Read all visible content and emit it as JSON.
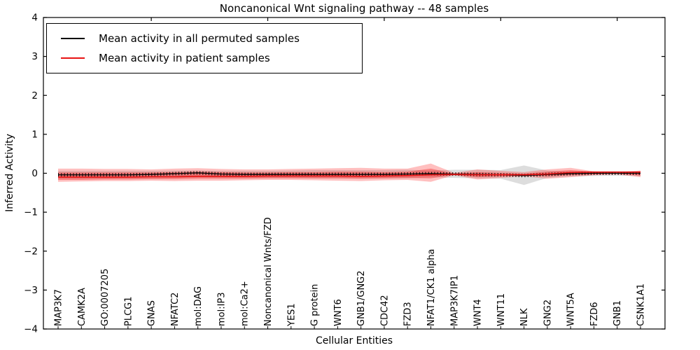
{
  "chart_data": {
    "type": "line",
    "title": "Noncanonical Wnt signaling pathway -- 48 samples",
    "xlabel": "Cellular Entities",
    "ylabel": "Inferred Activity",
    "ylim": [
      -4,
      4
    ],
    "yticks": [
      -4,
      -3,
      -2,
      -1,
      0,
      1,
      2,
      3,
      4
    ],
    "grid": false,
    "legend_position": "upper left",
    "top_tick_indices": [
      4,
      9,
      14,
      19,
      24
    ],
    "categories": [
      "MAP3K7",
      "CAMK2A",
      "GO:0007205",
      "PLCG1",
      "GNAS",
      "NFATC2",
      "mol:DAG",
      "mol:IP3",
      "mol:Ca2+",
      "Noncanonical Wnts/FZD",
      "YES1",
      "G protein",
      "WNT6",
      "GNB1/GNG2",
      "CDC42",
      "FZD3",
      "NFAT1/CK1 alpha",
      "MAP3K7IP1",
      "WNT4",
      "WNT11",
      "NLK",
      "GNG2",
      "WNT5A",
      "FZD6",
      "GNB1",
      "CSNK1A1"
    ],
    "series": [
      {
        "name": "Mean activity in all permuted samples",
        "color": "#000000",
        "line_width": 1.3,
        "tick_markers": true,
        "values": [
          -0.04,
          -0.04,
          -0.04,
          -0.04,
          -0.03,
          -0.01,
          0.01,
          -0.02,
          -0.03,
          -0.03,
          -0.03,
          -0.03,
          -0.03,
          -0.03,
          -0.03,
          -0.02,
          -0.01,
          -0.02,
          -0.03,
          -0.04,
          -0.06,
          -0.03,
          -0.01,
          0.0,
          0.0,
          0.0
        ]
      },
      {
        "name": "Mean activity in patient samples",
        "color": "#e81313",
        "line_width": 1.6,
        "tick_markers": false,
        "values": [
          -0.1,
          -0.1,
          -0.1,
          -0.1,
          -0.09,
          -0.09,
          -0.08,
          -0.08,
          -0.08,
          -0.07,
          -0.07,
          -0.07,
          -0.07,
          -0.08,
          -0.07,
          -0.06,
          -0.04,
          -0.03,
          -0.04,
          -0.04,
          -0.04,
          -0.02,
          0.02,
          0.03,
          0.03,
          0.03
        ]
      }
    ],
    "bands": [
      {
        "name": "permuted-samples-range",
        "color": "#aaaaaa",
        "opacity": 0.4,
        "upper": [
          0.06,
          0.06,
          0.06,
          0.06,
          0.06,
          0.07,
          0.07,
          0.06,
          0.06,
          0.06,
          0.07,
          0.08,
          0.08,
          0.08,
          0.08,
          0.09,
          0.07,
          0.09,
          0.09,
          0.08,
          0.2,
          0.07,
          0.05,
          0.05,
          0.05,
          0.05
        ],
        "lower": [
          -0.14,
          -0.14,
          -0.14,
          -0.13,
          -0.13,
          -0.12,
          -0.11,
          -0.12,
          -0.12,
          -0.12,
          -0.12,
          -0.13,
          -0.13,
          -0.13,
          -0.13,
          -0.13,
          -0.1,
          -0.12,
          -0.13,
          -0.14,
          -0.3,
          -0.12,
          -0.08,
          -0.07,
          -0.06,
          -0.07
        ]
      },
      {
        "name": "patient-samples-range-outer",
        "color": "#ff2a2a",
        "opacity": 0.3,
        "upper": [
          0.12,
          0.12,
          0.11,
          0.11,
          0.1,
          0.12,
          0.13,
          0.11,
          0.1,
          0.1,
          0.11,
          0.12,
          0.13,
          0.14,
          0.12,
          0.12,
          0.25,
          0.01,
          0.1,
          0.06,
          0.03,
          0.1,
          0.14,
          0.05,
          0.03,
          0.07
        ],
        "lower": [
          -0.22,
          -0.21,
          -0.2,
          -0.2,
          -0.19,
          -0.2,
          -0.19,
          -0.19,
          -0.18,
          -0.17,
          -0.17,
          -0.18,
          -0.19,
          -0.2,
          -0.18,
          -0.17,
          -0.22,
          -0.05,
          -0.16,
          -0.12,
          -0.08,
          -0.14,
          -0.1,
          -0.05,
          -0.03,
          -0.1
        ],
        "legend": ""
      },
      {
        "name": "patient-samples-range-inner",
        "color": "#ee1111",
        "opacity": 0.35,
        "upper": [
          0.02,
          0.02,
          0.02,
          0.02,
          0.02,
          0.03,
          0.04,
          0.03,
          0.02,
          0.02,
          0.03,
          0.03,
          0.04,
          0.04,
          0.03,
          0.04,
          0.12,
          -0.01,
          0.03,
          0.01,
          -0.01,
          0.04,
          0.08,
          0.04,
          0.01,
          0.05
        ],
        "lower": [
          -0.17,
          -0.17,
          -0.16,
          -0.16,
          -0.15,
          -0.15,
          -0.14,
          -0.14,
          -0.14,
          -0.13,
          -0.13,
          -0.13,
          -0.13,
          -0.14,
          -0.13,
          -0.12,
          -0.13,
          -0.04,
          -0.1,
          -0.08,
          -0.05,
          -0.08,
          -0.05,
          -0.03,
          -0.01,
          -0.06
        ]
      }
    ]
  },
  "legend": {
    "entries": [
      {
        "label": "Mean activity in all permuted samples",
        "color": "#000000"
      },
      {
        "label": "Mean activity in patient samples",
        "color": "#e81313"
      }
    ]
  }
}
